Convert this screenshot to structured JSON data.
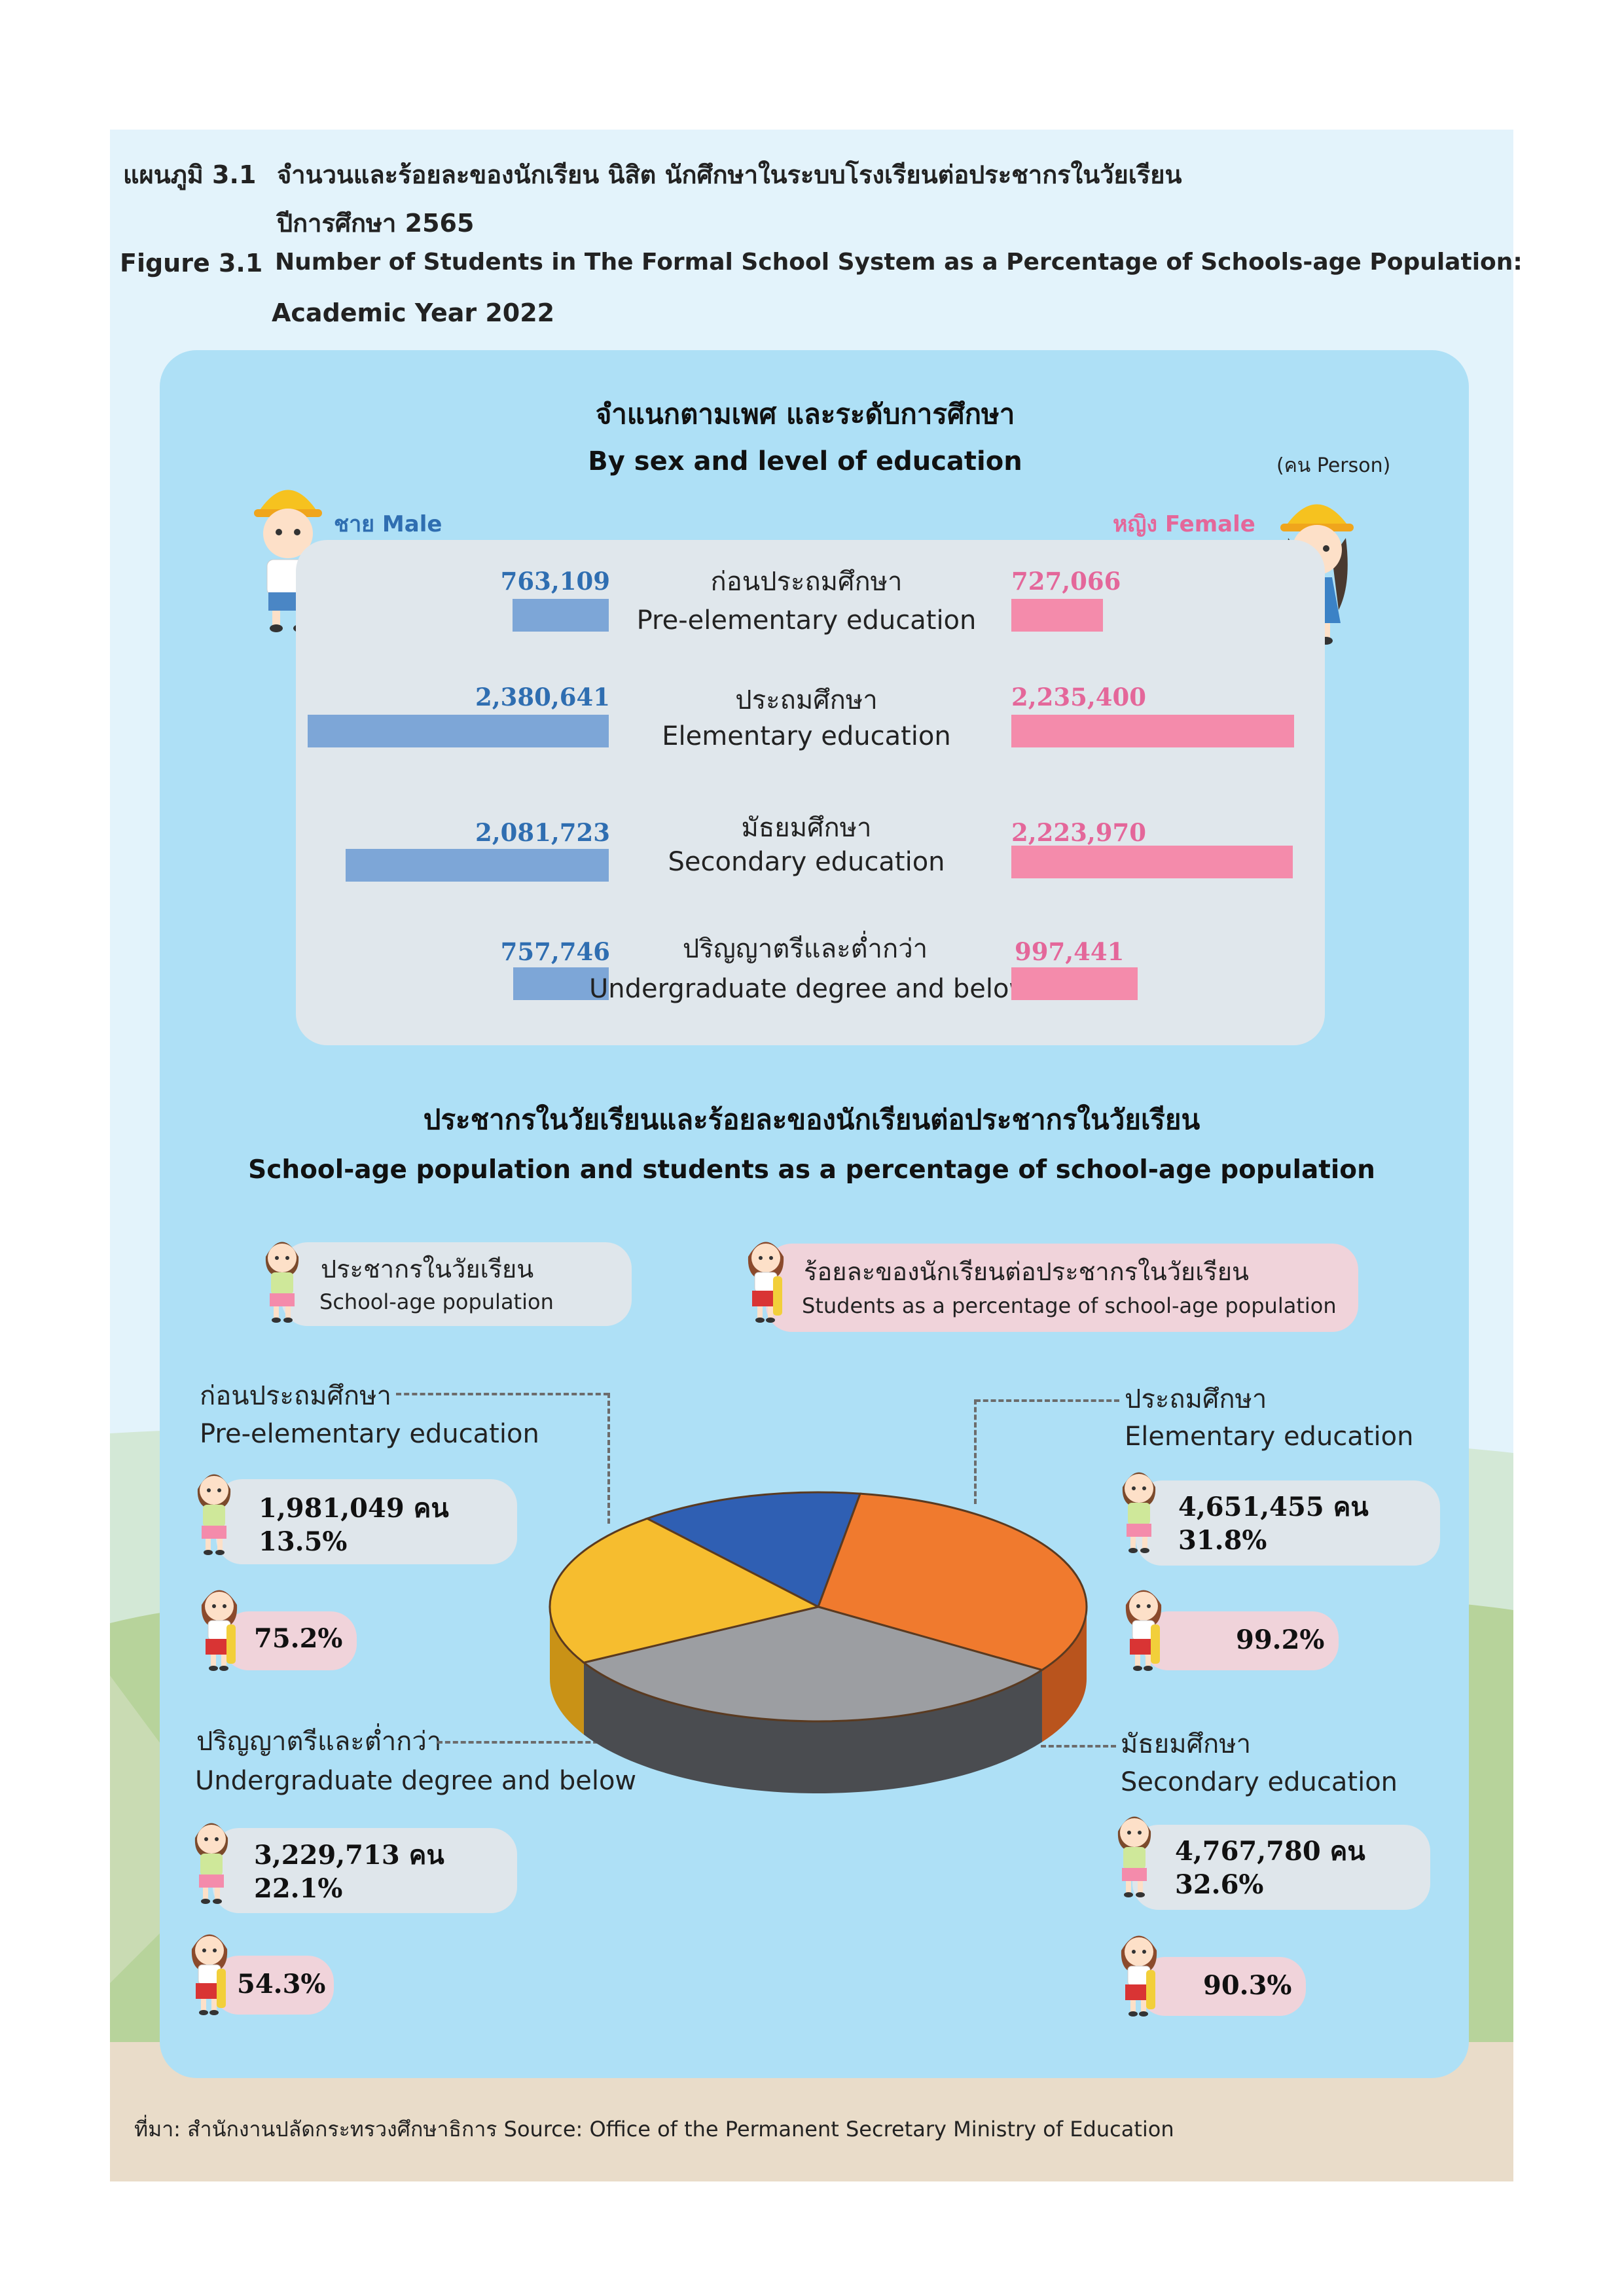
{
  "header": {
    "th_prefix": "แผนภูมิ 3.1",
    "th_title_line1": "จำนวนและร้อยละของนักเรียน นิสิต นักศึกษาในระบบโรงเรียนต่อประชากรในวัยเรียน",
    "th_title_line2": "ปีการศึกษา 2565",
    "en_prefix": "Figure  3.1",
    "en_title_line1": "Number of Students in The Formal School System as a Percentage of Schools-age Population:",
    "en_title_line2": "Academic Year 2022"
  },
  "section1": {
    "title_th": "จำแนกตามเพศ และระดับการศึกษา",
    "title_en": "By sex and level of education",
    "unit": "(คน Person)",
    "male_label": "ชาย Male",
    "female_label": "หญิง Female"
  },
  "section2": {
    "title_th": "ประชากรในวัยเรียนและร้อยละของนักเรียนต่อประชากรในวัยเรียน",
    "title_en": "School-age population and students as a percentage of school-age population",
    "legend_pop_th": "ประชากรในวัยเรียน",
    "legend_pop_en": "School-age population",
    "legend_pct_th": "ร้อยละของนักเรียนต่อประชากรในวัยเรียน",
    "legend_pct_en": "Students as a percentage of school-age population"
  },
  "footer": {
    "source": "ที่มา: สำนักงานปลัดกระทรวงศึกษาธิการ   Source: Office of the Permanent Secretary Ministry of Education"
  },
  "colors": {
    "male": "#7da6d7",
    "female": "#f48bab",
    "pre_elementary": "#2f5fb3",
    "elementary": "#f07a2e",
    "secondary": "#9c9ea2",
    "undergraduate": "#f6bd2f"
  },
  "chart_data": [
    {
      "type": "bar",
      "orientation": "horizontal-butterfly",
      "categories": [
        "ก่อนประถมศึกษา Pre-elementary education",
        "ประถมศึกษา Elementary education",
        "มัธยมศึกษา Secondary education",
        "ปริญญาตรีและต่ำกว่า Undergraduate degree and below"
      ],
      "categories_th": [
        "ก่อนประถมศึกษา",
        "ประถมศึกษา",
        "มัธยมศึกษา",
        "ปริญญาตรีและต่ำกว่า"
      ],
      "categories_en": [
        "Pre-elementary education",
        "Elementary education",
        "Secondary education",
        "Undergraduate degree and below"
      ],
      "series": [
        {
          "name": "ชาย Male",
          "values": [
            763109,
            2380641,
            2081723,
            757746
          ],
          "labels": [
            "763,109",
            "2,380,641",
            "2,081,723",
            "757,746"
          ]
        },
        {
          "name": "หญิง Female",
          "values": [
            727066,
            2235400,
            2223970,
            997441
          ],
          "labels": [
            "727,066",
            "2,235,400",
            "2,223,970",
            "997,441"
          ]
        }
      ]
    },
    {
      "type": "pie",
      "slices": [
        {
          "key": "pre",
          "label_th": "ก่อนประถมศึกษา",
          "label_en": "Pre-elementary education",
          "population": "1,981,049 คน",
          "share": 13.5,
          "share_label": "13.5%",
          "pct_students": "75.2%"
        },
        {
          "key": "ele",
          "label_th": "ประถมศึกษา",
          "label_en": "Elementary education",
          "population": "4,651,455 คน",
          "share": 31.8,
          "share_label": "31.8%",
          "pct_students": "99.2%"
        },
        {
          "key": "sec",
          "label_th": "มัธยมศึกษา",
          "label_en": "Secondary education",
          "population": "4,767,780 คน",
          "share": 32.6,
          "share_label": "32.6%",
          "pct_students": "90.3%"
        },
        {
          "key": "und",
          "label_th": "ปริญญาตรีและต่ำกว่า",
          "label_en": "Undergraduate degree and below",
          "population": "3,229,713 คน",
          "share": 22.1,
          "share_label": "22.1%",
          "pct_students": "54.3%"
        }
      ]
    }
  ]
}
